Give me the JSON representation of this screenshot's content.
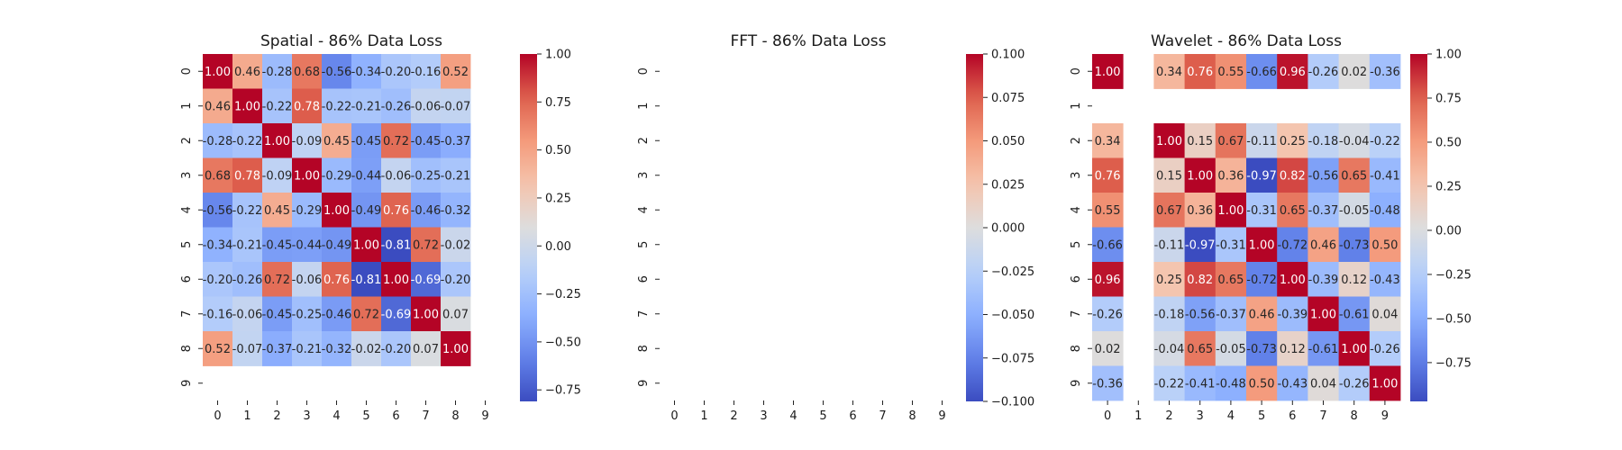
{
  "chart_data": [
    {
      "type": "heatmap",
      "title": "Spatial - 86% Data Loss",
      "x_ticks": [
        "0",
        "1",
        "2",
        "3",
        "4",
        "5",
        "6",
        "7",
        "8",
        "9"
      ],
      "y_ticks": [
        "0",
        "1",
        "2",
        "3",
        "4",
        "5",
        "6",
        "7",
        "8",
        "9"
      ],
      "colormap": "coolwarm",
      "vmin": -0.81,
      "vmax": 1.0,
      "colorbar_ticks": [
        "1.00",
        "0.75",
        "0.50",
        "0.25",
        "0.00",
        "−0.25",
        "−0.50",
        "−0.75"
      ],
      "colorbar_tick_values": [
        1.0,
        0.75,
        0.5,
        0.25,
        0.0,
        -0.25,
        -0.5,
        -0.75
      ],
      "annotations": true,
      "values": [
        [
          1.0,
          0.46,
          -0.28,
          0.68,
          -0.56,
          -0.34,
          -0.2,
          -0.16,
          0.52,
          null
        ],
        [
          0.46,
          1.0,
          -0.22,
          0.78,
          -0.22,
          -0.21,
          -0.26,
          -0.06,
          -0.07,
          null
        ],
        [
          -0.28,
          -0.22,
          1.0,
          -0.09,
          0.45,
          -0.45,
          0.72,
          -0.45,
          -0.37,
          null
        ],
        [
          0.68,
          0.78,
          -0.09,
          1.0,
          -0.29,
          -0.44,
          -0.06,
          -0.25,
          -0.21,
          null
        ],
        [
          -0.56,
          -0.22,
          0.45,
          -0.29,
          1.0,
          -0.49,
          0.76,
          -0.46,
          -0.32,
          null
        ],
        [
          -0.34,
          -0.21,
          -0.45,
          -0.44,
          -0.49,
          1.0,
          -0.81,
          0.72,
          -0.02,
          null
        ],
        [
          -0.2,
          -0.26,
          0.72,
          -0.06,
          0.76,
          -0.81,
          1.0,
          -0.69,
          -0.2,
          null
        ],
        [
          -0.16,
          -0.06,
          -0.45,
          -0.25,
          -0.46,
          0.72,
          -0.69,
          1.0,
          0.07,
          null
        ],
        [
          0.52,
          -0.07,
          -0.37,
          -0.21,
          -0.32,
          -0.02,
          -0.2,
          0.07,
          1.0,
          null
        ],
        [
          null,
          null,
          null,
          null,
          null,
          null,
          null,
          null,
          null,
          null
        ]
      ]
    },
    {
      "type": "heatmap",
      "title": "FFT - 86% Data Loss",
      "x_ticks": [
        "0",
        "1",
        "2",
        "3",
        "4",
        "5",
        "6",
        "7",
        "8",
        "9"
      ],
      "y_ticks": [
        "0",
        "1",
        "2",
        "3",
        "4",
        "5",
        "6",
        "7",
        "8",
        "9"
      ],
      "colormap": "coolwarm",
      "vmin": -0.1,
      "vmax": 0.1,
      "colorbar_ticks": [
        "0.100",
        "0.075",
        "0.050",
        "0.025",
        "0.000",
        "−0.025",
        "−0.050",
        "−0.075",
        "−0.100"
      ],
      "colorbar_tick_values": [
        0.1,
        0.075,
        0.05,
        0.025,
        0.0,
        -0.025,
        -0.05,
        -0.075,
        -0.1
      ],
      "annotations": true,
      "values": [
        [
          null,
          null,
          null,
          null,
          null,
          null,
          null,
          null,
          null,
          null
        ],
        [
          null,
          null,
          null,
          null,
          null,
          null,
          null,
          null,
          null,
          null
        ],
        [
          null,
          null,
          null,
          null,
          null,
          null,
          null,
          null,
          null,
          null
        ],
        [
          null,
          null,
          null,
          null,
          null,
          null,
          null,
          null,
          null,
          null
        ],
        [
          null,
          null,
          null,
          null,
          null,
          null,
          null,
          null,
          null,
          null
        ],
        [
          null,
          null,
          null,
          null,
          null,
          null,
          null,
          null,
          null,
          null
        ],
        [
          null,
          null,
          null,
          null,
          null,
          null,
          null,
          null,
          null,
          null
        ],
        [
          null,
          null,
          null,
          null,
          null,
          null,
          null,
          null,
          null,
          null
        ],
        [
          null,
          null,
          null,
          null,
          null,
          null,
          null,
          null,
          null,
          null
        ],
        [
          null,
          null,
          null,
          null,
          null,
          null,
          null,
          null,
          null,
          null
        ]
      ]
    },
    {
      "type": "heatmap",
      "title": "Wavelet - 86% Data Loss",
      "x_ticks": [
        "0",
        "1",
        "2",
        "3",
        "4",
        "5",
        "6",
        "7",
        "8",
        "9"
      ],
      "y_ticks": [
        "0",
        "1",
        "2",
        "3",
        "4",
        "5",
        "6",
        "7",
        "8",
        "9"
      ],
      "colormap": "coolwarm",
      "vmin": -0.97,
      "vmax": 1.0,
      "colorbar_ticks": [
        "1.00",
        "0.75",
        "0.50",
        "0.25",
        "0.00",
        "−0.25",
        "−0.50",
        "−0.75"
      ],
      "colorbar_tick_values": [
        1.0,
        0.75,
        0.5,
        0.25,
        0.0,
        -0.25,
        -0.5,
        -0.75
      ],
      "annotations": true,
      "values": [
        [
          1.0,
          null,
          0.34,
          0.76,
          0.55,
          -0.66,
          0.96,
          -0.26,
          0.02,
          -0.36
        ],
        [
          null,
          null,
          null,
          null,
          null,
          null,
          null,
          null,
          null,
          null
        ],
        [
          0.34,
          null,
          1.0,
          0.15,
          0.67,
          -0.11,
          0.25,
          -0.18,
          -0.04,
          -0.22
        ],
        [
          0.76,
          null,
          0.15,
          1.0,
          0.36,
          -0.97,
          0.82,
          -0.56,
          0.65,
          -0.41
        ],
        [
          0.55,
          null,
          0.67,
          0.36,
          1.0,
          -0.31,
          0.65,
          -0.37,
          -0.05,
          -0.48
        ],
        [
          -0.66,
          null,
          -0.11,
          -0.97,
          -0.31,
          1.0,
          -0.72,
          0.46,
          -0.73,
          0.5
        ],
        [
          0.96,
          null,
          0.25,
          0.82,
          0.65,
          -0.72,
          1.0,
          -0.39,
          0.12,
          -0.43
        ],
        [
          -0.26,
          null,
          -0.18,
          -0.56,
          -0.37,
          0.46,
          -0.39,
          1.0,
          -0.61,
          0.04
        ],
        [
          0.02,
          null,
          -0.04,
          0.65,
          -0.05,
          -0.73,
          0.12,
          -0.61,
          1.0,
          -0.26
        ],
        [
          -0.36,
          null,
          -0.22,
          -0.41,
          -0.48,
          0.5,
          -0.43,
          0.04,
          -0.26,
          1.0
        ]
      ]
    }
  ]
}
